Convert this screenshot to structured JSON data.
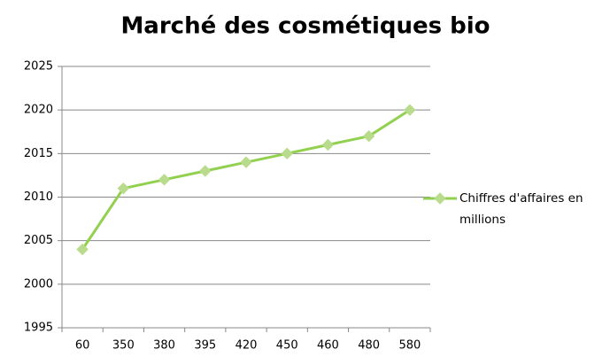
{
  "chart_data": {
    "type": "line",
    "title": "Marché des cosmétiques bio",
    "categories": [
      "60",
      "350",
      "380",
      "395",
      "420",
      "450",
      "460",
      "480",
      "580"
    ],
    "series": [
      {
        "name": "Chiffres d'affaires en millions",
        "color": "#92d050",
        "marker_color": "#b8dc8c",
        "values": [
          2004,
          2011,
          2012,
          2013,
          2014,
          2015,
          2016,
          2017,
          2020
        ]
      }
    ],
    "ylim": [
      1995,
      2025
    ],
    "yticks": [
      1995,
      2000,
      2005,
      2010,
      2015,
      2020,
      2025
    ],
    "grid": true,
    "legend": "right"
  }
}
